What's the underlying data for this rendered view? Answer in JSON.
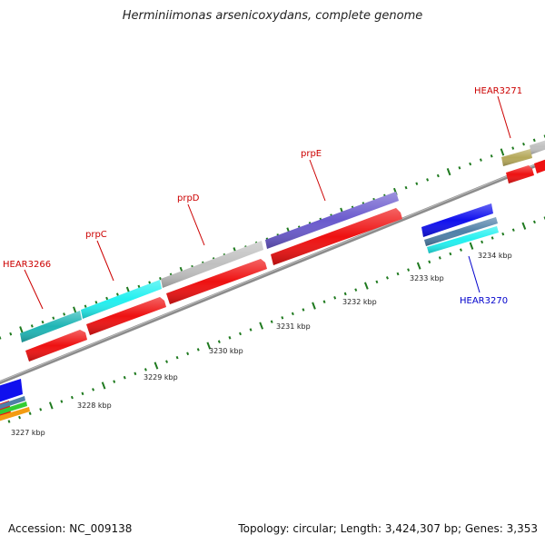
{
  "title": "Herminiimonas arsenicoxydans, complete genome",
  "footer": {
    "accession": "Accession: NC_009138",
    "summary": "Topology: circular; Length: 3,424,307 bp; Genes: 3,353"
  },
  "scale_labels": [
    "3227 kbp",
    "3228 kbp",
    "3229 kbp",
    "3230 kbp",
    "3231 kbp",
    "3232 kbp",
    "3233 kbp",
    "3234 kbp"
  ],
  "gene_labels": [
    {
      "text": "HEAR3266",
      "color": "#cc0000"
    },
    {
      "text": "prpC",
      "color": "#cc0000"
    },
    {
      "text": "prpD",
      "color": "#cc0000"
    },
    {
      "text": "prpE",
      "color": "#cc0000"
    },
    {
      "text": "HEAR3271",
      "color": "#cc0000"
    },
    {
      "text": "HEAR3270",
      "color": "#0000cc"
    }
  ],
  "colors": {
    "backbone": "#8c8c8c",
    "cds": "#ee1111",
    "tick": "#1f7a1f",
    "teal": "#1fb5b5",
    "cyan": "#22f0f0",
    "gray": "#c0c0c0",
    "purple": "#6a5acd",
    "olive": "#b5a85a",
    "blue": "#1010ee",
    "steel": "#4f7fa8",
    "green": "#33cc33",
    "orange": "#f39c12"
  }
}
